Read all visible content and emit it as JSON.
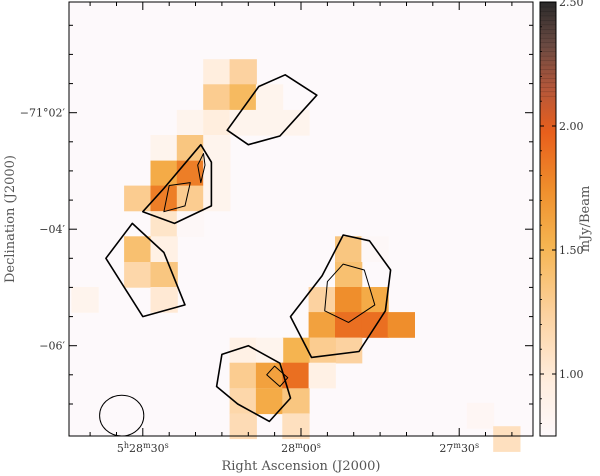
{
  "chart_data": {
    "type": "heatmap",
    "title": "",
    "xlabel": "Right Ascension (J2000)",
    "ylabel": "Declination (J2000)",
    "colorbar_label": "mJy/Beam",
    "x_ticks": [
      {
        "h": "5",
        "m": "28",
        "s": "30",
        "ra_sec": 30
      },
      {
        "h": "",
        "m": "28",
        "s": "00",
        "ra_sec": 0
      },
      {
        "h": "",
        "m": "27",
        "s": "30",
        "ra_sec": -30
      }
    ],
    "y_ticks": [
      {
        "label": "−71°02′",
        "dec_min": -2
      },
      {
        "label": "−04′",
        "dec_min": -4
      },
      {
        "label": "−06′",
        "dec_min": -6
      }
    ],
    "colorbar_ticks": [
      "1.00",
      "1.50",
      "2.00",
      "2.50"
    ],
    "colorbar_tick_values": [
      1.0,
      1.5,
      2.0,
      2.5
    ],
    "colorbar_range": [
      0.75,
      2.5
    ],
    "ra_range_sec": [
      44,
      -44
    ],
    "dec_range_min": [
      -0.1,
      -7.55
    ],
    "pixel_size": {
      "ra_sec": 5.1,
      "dec_min": 0.435
    },
    "pixels": [
      {
        "ra": 16,
        "dec": -1.3,
        "v": 0.95
      },
      {
        "ra": 11,
        "dec": -1.3,
        "v": 1.25
      },
      {
        "ra": 16,
        "dec": -1.73,
        "v": 1.3
      },
      {
        "ra": 11,
        "dec": -1.73,
        "v": 1.45
      },
      {
        "ra": 6,
        "dec": -1.73,
        "v": 0.85
      },
      {
        "ra": 21,
        "dec": -2.17,
        "v": 0.85
      },
      {
        "ra": 16,
        "dec": -2.17,
        "v": 0.95
      },
      {
        "ra": 11,
        "dec": -2.17,
        "v": 0.85
      },
      {
        "ra": 6,
        "dec": -2.17,
        "v": 0.85
      },
      {
        "ra": 1,
        "dec": -2.17,
        "v": 0.85
      },
      {
        "ra": 26,
        "dec": -2.6,
        "v": 0.85
      },
      {
        "ra": 21,
        "dec": -2.6,
        "v": 1.35
      },
      {
        "ra": 16,
        "dec": -2.6,
        "v": 0.85
      },
      {
        "ra": 26,
        "dec": -3.04,
        "v": 1.55
      },
      {
        "ra": 21,
        "dec": -3.04,
        "v": 1.75
      },
      {
        "ra": 16,
        "dec": -3.04,
        "v": 0.85
      },
      {
        "ra": 31,
        "dec": -3.47,
        "v": 1.3
      },
      {
        "ra": 26,
        "dec": -3.47,
        "v": 1.75
      },
      {
        "ra": 21,
        "dec": -3.47,
        "v": 1.3
      },
      {
        "ra": 16,
        "dec": -3.47,
        "v": 0.85
      },
      {
        "ra": 26,
        "dec": -3.91,
        "v": 1.05
      },
      {
        "ra": 21,
        "dec": -3.91,
        "v": 0.78
      },
      {
        "ra": 31,
        "dec": -4.34,
        "v": 1.4
      },
      {
        "ra": 26,
        "dec": -4.34,
        "v": 0.9
      },
      {
        "ra": 31,
        "dec": -4.78,
        "v": 1.2
      },
      {
        "ra": 26,
        "dec": -4.78,
        "v": 1.35
      },
      {
        "ra": 41,
        "dec": -5.21,
        "v": 0.85
      },
      {
        "ra": 26,
        "dec": -5.21,
        "v": 1.0
      },
      {
        "ra": -9,
        "dec": -4.34,
        "v": 1.35
      },
      {
        "ra": -14,
        "dec": -4.34,
        "v": 0.78
      },
      {
        "ra": -9,
        "dec": -4.78,
        "v": 1.4
      },
      {
        "ra": -4,
        "dec": -5.21,
        "v": 1.25
      },
      {
        "ra": -9,
        "dec": -5.21,
        "v": 1.7
      },
      {
        "ra": -14,
        "dec": -5.21,
        "v": 1.55
      },
      {
        "ra": -4,
        "dec": -5.64,
        "v": 1.6
      },
      {
        "ra": -9,
        "dec": -5.64,
        "v": 1.8
      },
      {
        "ra": -14,
        "dec": -5.64,
        "v": 1.8
      },
      {
        "ra": -19,
        "dec": -5.64,
        "v": 1.7
      },
      {
        "ra": -9,
        "dec": -6.08,
        "v": 1.25
      },
      {
        "ra": -4,
        "dec": -6.08,
        "v": 1.3
      },
      {
        "ra": 1,
        "dec": -6.08,
        "v": 1.5
      },
      {
        "ra": 11,
        "dec": -6.08,
        "v": 0.9
      },
      {
        "ra": 6,
        "dec": -6.08,
        "v": 0.85
      },
      {
        "ra": 11,
        "dec": -6.51,
        "v": 1.3
      },
      {
        "ra": 6,
        "dec": -6.51,
        "v": 1.6
      },
      {
        "ra": 1,
        "dec": -6.51,
        "v": 1.8
      },
      {
        "ra": -4,
        "dec": -6.51,
        "v": 0.9
      },
      {
        "ra": 11,
        "dec": -6.95,
        "v": 1.2
      },
      {
        "ra": 6,
        "dec": -6.95,
        "v": 1.55
      },
      {
        "ra": 1,
        "dec": -6.95,
        "v": 1.35
      },
      {
        "ra": 11,
        "dec": -7.38,
        "v": 1.15
      },
      {
        "ra": 1,
        "dec": -7.38,
        "v": 1.1
      },
      {
        "ra": -34,
        "dec": -7.2,
        "v": 0.8
      },
      {
        "ra": -39,
        "dec": -7.6,
        "v": 1.1
      }
    ],
    "contours": [
      {
        "level": "outer",
        "points": [
          [
            14,
            -2.3
          ],
          [
            8,
            -1.55
          ],
          [
            3,
            -1.35
          ],
          [
            -3,
            -1.7
          ],
          [
            4,
            -2.4
          ],
          [
            10,
            -2.55
          ]
        ]
      },
      {
        "level": "outer",
        "points": [
          [
            19,
            -2.55
          ],
          [
            26,
            -3.3
          ],
          [
            30,
            -3.7
          ],
          [
            24,
            -3.9
          ],
          [
            17,
            -3.6
          ],
          [
            17,
            -2.85
          ]
        ]
      },
      {
        "level": "outer",
        "points": [
          [
            32,
            -3.9
          ],
          [
            37,
            -4.5
          ],
          [
            30,
            -5.5
          ],
          [
            22,
            -5.3
          ],
          [
            26,
            -4.4
          ]
        ]
      },
      {
        "level": "outer",
        "points": [
          [
            -8,
            -4.1
          ],
          [
            -13,
            -4.2
          ],
          [
            -17,
            -4.7
          ],
          [
            -16,
            -5.4
          ],
          [
            -11,
            -6.1
          ],
          [
            -2,
            -6.2
          ],
          [
            2,
            -5.5
          ],
          [
            -4,
            -4.8
          ]
        ]
      },
      {
        "level": "outer",
        "points": [
          [
            15,
            -6.15
          ],
          [
            10,
            -6.0
          ],
          [
            4,
            -6.3
          ],
          [
            2,
            -6.9
          ],
          [
            6,
            -7.3
          ],
          [
            12,
            -7.0
          ],
          [
            16,
            -6.7
          ]
        ]
      },
      {
        "level": "inner",
        "points": [
          [
            18.5,
            -2.7
          ],
          [
            19.6,
            -2.9
          ],
          [
            19,
            -3.2
          ],
          [
            18.2,
            -2.9
          ]
        ]
      },
      {
        "level": "inner",
        "points": [
          [
            21,
            -3.2
          ],
          [
            25,
            -3.25
          ],
          [
            26,
            -3.7
          ],
          [
            22,
            -3.6
          ]
        ]
      },
      {
        "level": "inner",
        "points": [
          [
            -8,
            -4.6
          ],
          [
            -12,
            -4.7
          ],
          [
            -14,
            -5.3
          ],
          [
            -9,
            -5.6
          ],
          [
            -4.5,
            -5.4
          ],
          [
            -5,
            -4.9
          ]
        ]
      },
      {
        "level": "inner",
        "points": [
          [
            5,
            -6.35
          ],
          [
            2.5,
            -6.55
          ],
          [
            4,
            -6.7
          ],
          [
            6.5,
            -6.5
          ]
        ]
      }
    ],
    "beam": {
      "ra_center": 34,
      "dec_center": -7.2,
      "ra_radius": 4.2,
      "dec_radius": 0.35
    },
    "grid": false,
    "legend": "colorbar-right"
  }
}
